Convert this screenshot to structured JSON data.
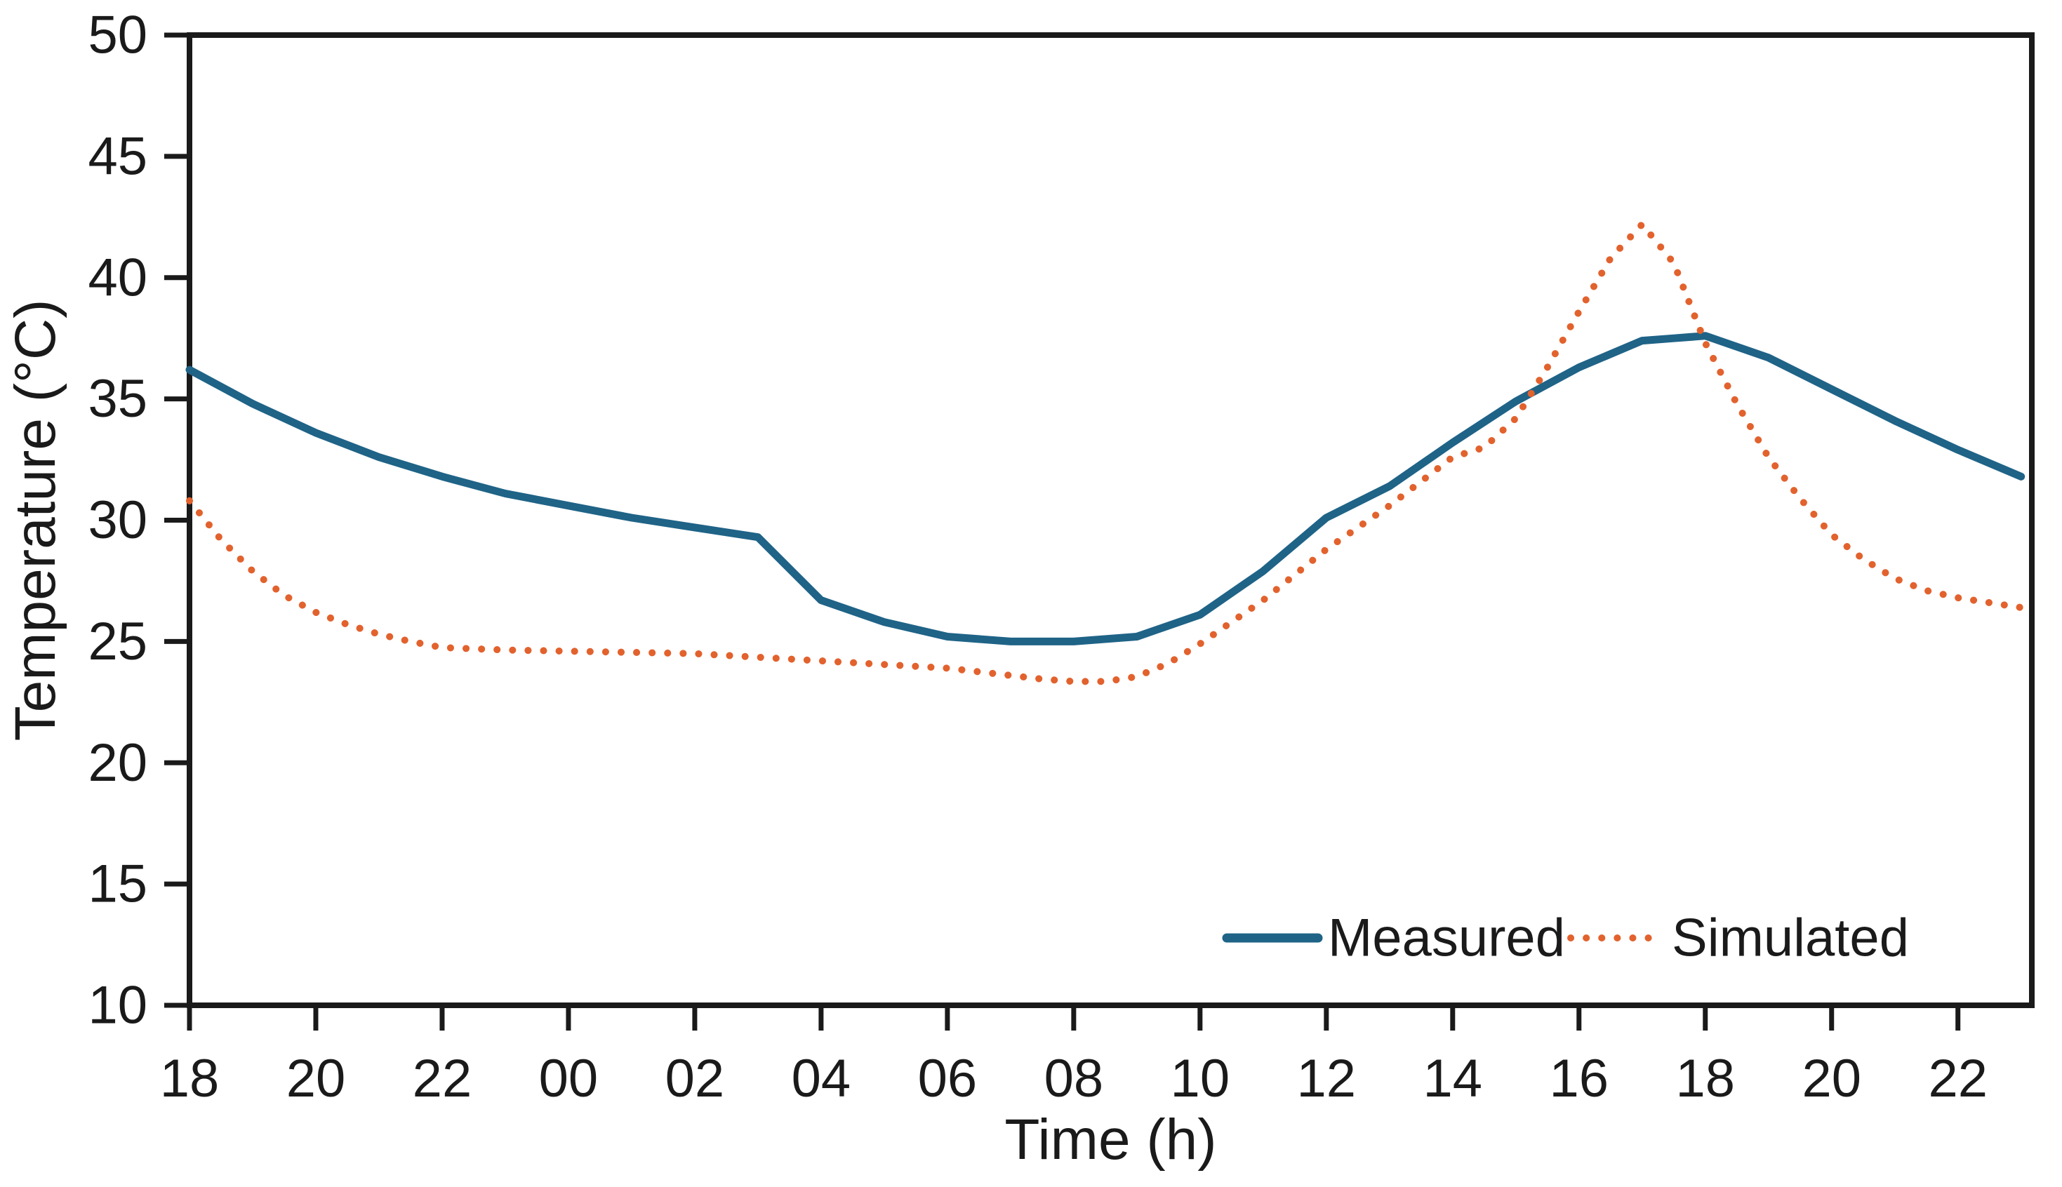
{
  "figure": {
    "background": "#ffffff",
    "axis_color": "#1a1a1a",
    "text_color": "#1a1a1a"
  },
  "chart_data": {
    "type": "line",
    "title": "",
    "xlabel": "Time (h)",
    "ylabel": "Temperature (°C)",
    "x_axis_note": "x values are hours elapsed since 18:00 of day 1; axis labels are clock hours",
    "xlim": [
      0,
      29.17
    ],
    "ylim": [
      10,
      50
    ],
    "y_ticks": [
      10,
      15,
      20,
      25,
      30,
      35,
      40,
      45,
      50
    ],
    "x_ticks": [
      {
        "t": 0,
        "label": "18"
      },
      {
        "t": 2,
        "label": "20"
      },
      {
        "t": 4,
        "label": "22"
      },
      {
        "t": 6,
        "label": "00"
      },
      {
        "t": 8,
        "label": "02"
      },
      {
        "t": 10,
        "label": "04"
      },
      {
        "t": 12,
        "label": "06"
      },
      {
        "t": 14,
        "label": "08"
      },
      {
        "t": 16,
        "label": "10"
      },
      {
        "t": 18,
        "label": "12"
      },
      {
        "t": 20,
        "label": "14"
      },
      {
        "t": 22,
        "label": "16"
      },
      {
        "t": 24,
        "label": "18"
      },
      {
        "t": 26,
        "label": "20"
      },
      {
        "t": 28,
        "label": "22"
      }
    ],
    "grid": false,
    "frame": "full box with outward ticks on left and bottom",
    "legend_position": "inside lower right",
    "series": [
      {
        "name": "Measured",
        "color": "#1F6387",
        "style": "solid",
        "line_width": 11,
        "points": [
          [
            0,
            36.2
          ],
          [
            1,
            34.8
          ],
          [
            2,
            33.6
          ],
          [
            3,
            32.6
          ],
          [
            4,
            31.8
          ],
          [
            5,
            31.1
          ],
          [
            6,
            30.6
          ],
          [
            7,
            30.1
          ],
          [
            8,
            29.7
          ],
          [
            9,
            29.3
          ],
          [
            10,
            26.7
          ],
          [
            11,
            25.8
          ],
          [
            12,
            25.2
          ],
          [
            13,
            25.0
          ],
          [
            14,
            25.0
          ],
          [
            15,
            25.2
          ],
          [
            16,
            26.1
          ],
          [
            17,
            27.9
          ],
          [
            18,
            30.1
          ],
          [
            19,
            31.4
          ],
          [
            20,
            33.2
          ],
          [
            21,
            34.9
          ],
          [
            22,
            36.3
          ],
          [
            23,
            37.4
          ],
          [
            23.5,
            37.5
          ],
          [
            24,
            37.6
          ],
          [
            25,
            36.7
          ],
          [
            26,
            35.4
          ],
          [
            27,
            34.1
          ],
          [
            28,
            32.9
          ],
          [
            29,
            31.8
          ]
        ]
      },
      {
        "name": "Simulated",
        "color": "#E2622E",
        "style": "dotted",
        "dot_diameter": 10,
        "dot_spacing": 22,
        "points": [
          [
            0,
            30.8
          ],
          [
            0.5,
            29.2
          ],
          [
            1,
            27.9
          ],
          [
            1.5,
            26.9
          ],
          [
            2,
            26.2
          ],
          [
            2.5,
            25.7
          ],
          [
            3,
            25.3
          ],
          [
            3.5,
            25.0
          ],
          [
            4,
            24.75
          ],
          [
            5,
            24.65
          ],
          [
            6,
            24.6
          ],
          [
            7,
            24.55
          ],
          [
            8,
            24.5
          ],
          [
            9,
            24.35
          ],
          [
            10,
            24.2
          ],
          [
            11,
            24.05
          ],
          [
            12,
            23.9
          ],
          [
            13,
            23.6
          ],
          [
            13.5,
            23.45
          ],
          [
            14,
            23.35
          ],
          [
            14.5,
            23.35
          ],
          [
            15,
            23.55
          ],
          [
            15.5,
            24.1
          ],
          [
            16,
            24.9
          ],
          [
            17,
            26.7
          ],
          [
            18,
            28.8
          ],
          [
            19,
            30.6
          ],
          [
            20,
            32.6
          ],
          [
            20.5,
            33.0
          ],
          [
            21,
            34.2
          ],
          [
            21.5,
            36.3
          ],
          [
            22,
            38.6
          ],
          [
            22.5,
            40.8
          ],
          [
            23,
            42.2
          ],
          [
            23.5,
            40.6
          ],
          [
            24,
            37.3
          ],
          [
            24.5,
            34.8
          ],
          [
            25,
            32.6
          ],
          [
            25.5,
            30.9
          ],
          [
            26,
            29.4
          ],
          [
            26.5,
            28.4
          ],
          [
            27,
            27.6
          ],
          [
            27.5,
            27.1
          ],
          [
            28,
            26.8
          ],
          [
            28.5,
            26.6
          ],
          [
            29,
            26.4
          ]
        ]
      }
    ]
  }
}
